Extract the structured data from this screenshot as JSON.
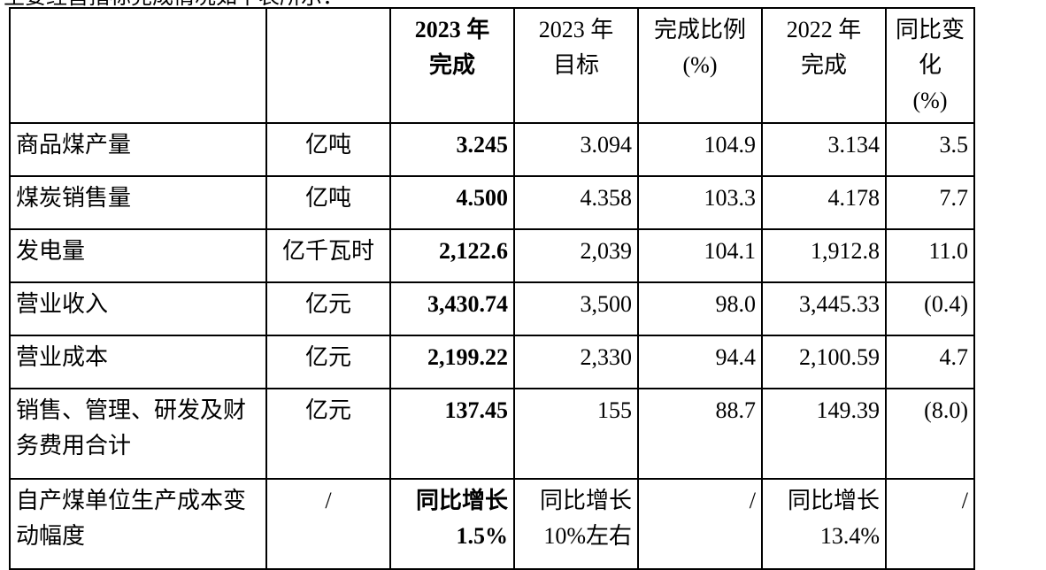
{
  "clipped_caption": "主要经营指标完成情况如下表所示：",
  "table": {
    "header": {
      "col0": "",
      "col1": "",
      "col2": [
        "2023 年",
        "完成"
      ],
      "col3": [
        "2023 年",
        "目标"
      ],
      "col4": [
        "完成比例",
        "(%)"
      ],
      "col5": [
        "2022 年",
        "完成"
      ],
      "col6": [
        "同比变化",
        "(%)"
      ]
    },
    "rows": [
      {
        "label": [
          "商品煤产量"
        ],
        "unit": "亿吨",
        "done2023": [
          "3.245"
        ],
        "target2023": [
          "3.094"
        ],
        "ratio": "104.9",
        "done2022": [
          "3.134"
        ],
        "yoy": "3.5"
      },
      {
        "label": [
          "煤炭销售量"
        ],
        "unit": "亿吨",
        "done2023": [
          "4.500"
        ],
        "target2023": [
          "4.358"
        ],
        "ratio": "103.3",
        "done2022": [
          "4.178"
        ],
        "yoy": "7.7"
      },
      {
        "label": [
          "发电量"
        ],
        "unit": "亿千瓦时",
        "done2023": [
          "2,122.6"
        ],
        "target2023": [
          "2,039"
        ],
        "ratio": "104.1",
        "done2022": [
          "1,912.8"
        ],
        "yoy": "11.0"
      },
      {
        "label": [
          "营业收入"
        ],
        "unit": "亿元",
        "done2023": [
          "3,430.74"
        ],
        "target2023": [
          "3,500"
        ],
        "ratio": "98.0",
        "done2022": [
          "3,445.33"
        ],
        "yoy": "(0.4)"
      },
      {
        "label": [
          "营业成本"
        ],
        "unit": "亿元",
        "done2023": [
          "2,199.22"
        ],
        "target2023": [
          "2,330"
        ],
        "ratio": "94.4",
        "done2022": [
          "2,100.59"
        ],
        "yoy": "4.7"
      },
      {
        "label": [
          "销售、管理、研发及财",
          "务费用合计"
        ],
        "unit": "亿元",
        "done2023": [
          "137.45"
        ],
        "target2023": [
          "155"
        ],
        "ratio": "88.7",
        "done2022": [
          "149.39"
        ],
        "yoy": "(8.0)"
      },
      {
        "label": [
          "自产煤单位生产成本变",
          "动幅度"
        ],
        "unit": "/",
        "done2023": [
          "同比增长",
          "1.5%"
        ],
        "target2023": [
          "同比增长",
          "10%左右"
        ],
        "ratio": "/",
        "done2022": [
          "同比增长",
          "13.4%"
        ],
        "yoy": "/"
      }
    ]
  }
}
